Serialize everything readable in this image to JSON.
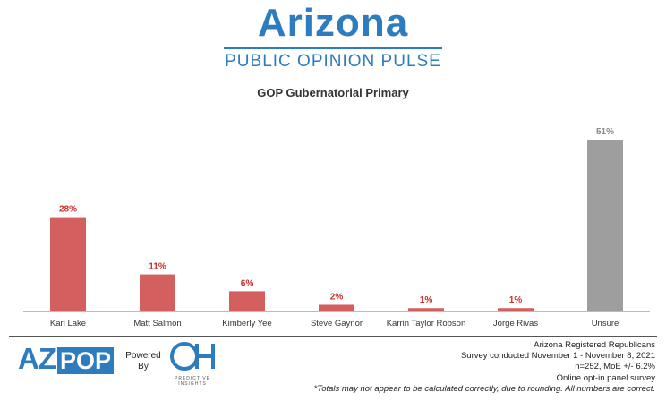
{
  "header": {
    "logo_title": "Arizona",
    "logo_subtitle": "PUBLIC OPINION PULSE"
  },
  "colors": {
    "brand_blue": "#2e7cc0",
    "candidate_bar": "#d35f5f",
    "candidate_label": "#c9302c",
    "unsure_bar": "#9e9e9e",
    "unsure_label": "#888888"
  },
  "chart_data": {
    "type": "bar",
    "title": "GOP Gubernatorial Primary",
    "categories": [
      "Kari Lake",
      "Matt Salmon",
      "Kimberly Yee",
      "Steve Gaynor",
      "Karrin Taylor Robson",
      "Jorge Rivas",
      "Unsure"
    ],
    "values": [
      28,
      11,
      6,
      2,
      1,
      1,
      51
    ],
    "value_labels": [
      "28%",
      "11%",
      "6%",
      "2%",
      "1%",
      "1%",
      "51%"
    ],
    "ylim": [
      0,
      51
    ],
    "grid": false,
    "xlabel": "",
    "ylabel": ""
  },
  "footer": {
    "az_text": "AZ",
    "pop_text": "POP",
    "powered_by": "Powered By",
    "oh_text": "OH",
    "oh_caption": "PREDICTIVE INSIGHTS",
    "lines": [
      "Arizona Registered Republicans",
      "Survey conducted November 1 - November 8, 2021",
      "n=252, MoE +/- 6.2%",
      "Online opt-in panel survey"
    ],
    "disclaimer": "*Totals may not appear to be calculated correctly, due to rounding. All numbers are correct."
  }
}
